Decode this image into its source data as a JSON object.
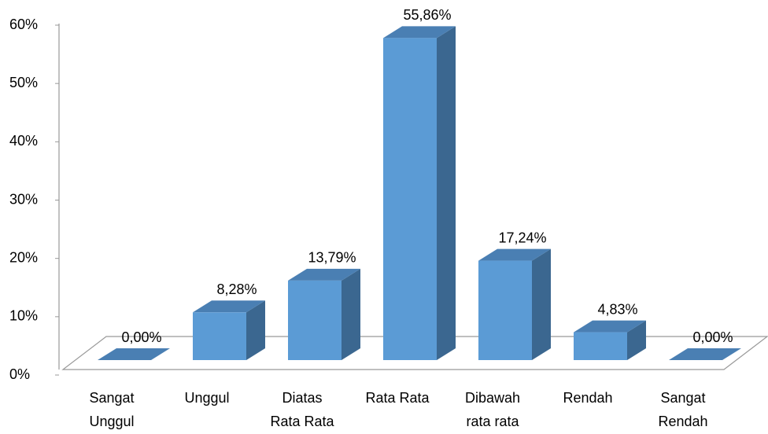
{
  "chart_data": {
    "type": "bar3d",
    "categories": [
      [
        "Sangat",
        "Unggul"
      ],
      [
        "Unggul"
      ],
      [
        "Diatas",
        "Rata Rata"
      ],
      [
        "Rata Rata"
      ],
      [
        "Dibawah",
        "rata rata"
      ],
      [
        "Rendah"
      ],
      [
        "Sangat",
        "Rendah"
      ]
    ],
    "values": [
      0,
      8.28,
      13.79,
      55.86,
      17.24,
      4.83,
      0
    ],
    "value_labels": [
      "0,00%",
      "8,28%",
      "13,79%",
      "55,86%",
      "17,24%",
      "4,83%",
      "0,00%"
    ],
    "color": "#5b9bd5",
    "ylim": [
      0,
      60
    ],
    "yticks": [
      {
        "value": 0,
        "label": "0%"
      },
      {
        "value": 10,
        "label": "10%"
      },
      {
        "value": 20,
        "label": "20%"
      },
      {
        "value": 30,
        "label": "30%"
      },
      {
        "value": 40,
        "label": "40%"
      },
      {
        "value": 50,
        "label": "50%"
      },
      {
        "value": 60,
        "label": "60%"
      }
    ]
  }
}
